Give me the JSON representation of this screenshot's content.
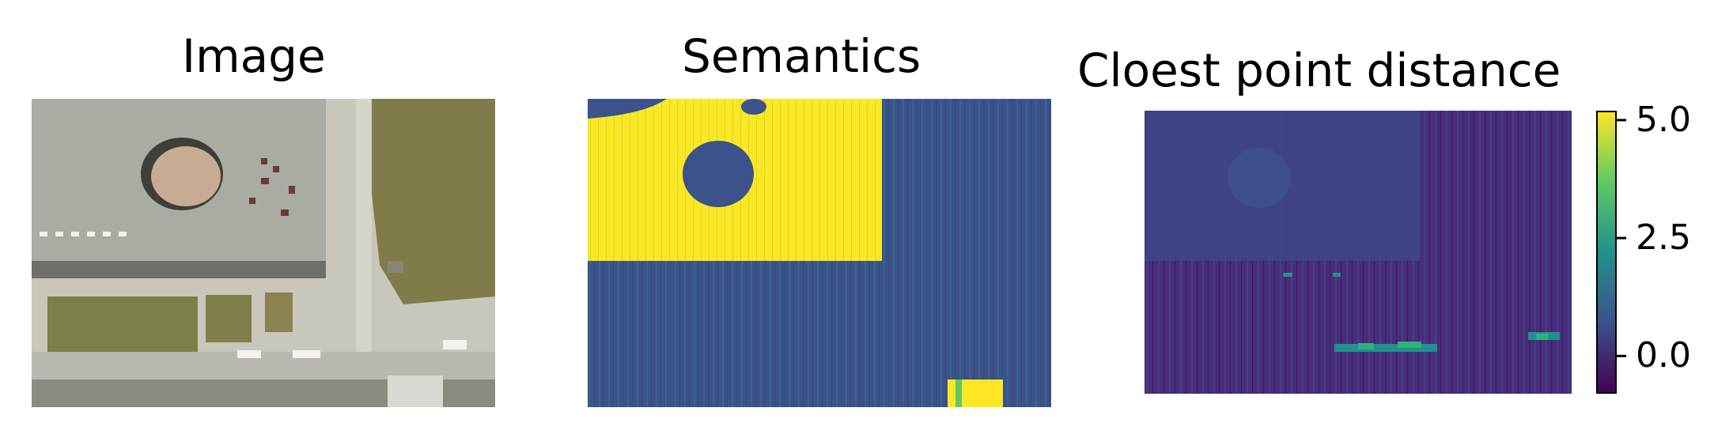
{
  "panels": [
    {
      "title": "Image"
    },
    {
      "title": "Semantics"
    },
    {
      "title": "Cloest point distance"
    }
  ],
  "colors": {
    "viridis_dark": "#440154",
    "viridis_blue": "#3b528b",
    "viridis_teal": "#21918c",
    "viridis_green": "#5ec962",
    "viridis_yellow": "#fde725",
    "roof_gray": "#a9aca3",
    "grass_green": "#7f7c4a",
    "pavement": "#c9c6bb"
  },
  "chart_data": {
    "type": "heatmap",
    "colormap": "viridis",
    "colorbar": {
      "min": -0.8,
      "max": 5.2,
      "ticks": [
        0.0,
        2.5,
        5.0
      ],
      "tick_labels": [
        "0.0",
        "2.5",
        "5.0"
      ]
    }
  }
}
